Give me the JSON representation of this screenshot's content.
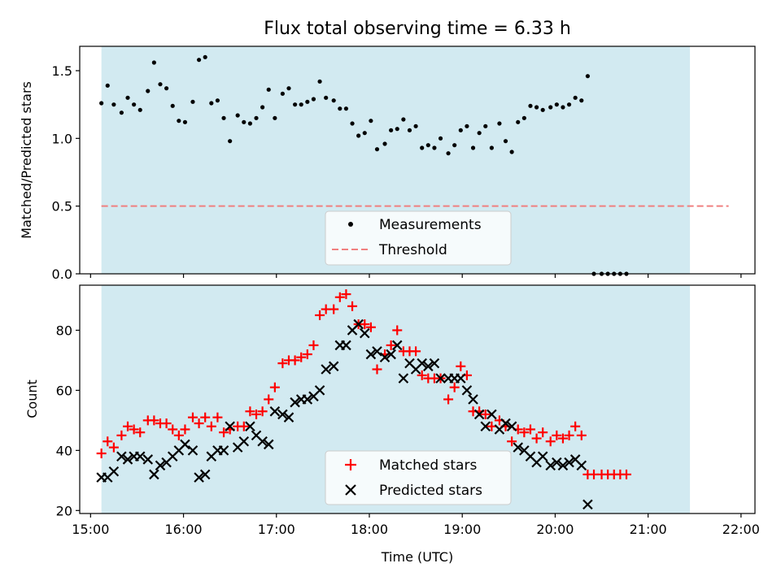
{
  "chart_data": [
    {
      "panel": "top",
      "type": "scatter",
      "title": "Flux total observing time = 6.33 h",
      "ylabel": "Matched/Predicted stars",
      "xlabel": "",
      "ylim": [
        0,
        1.68
      ],
      "yticks": [
        "0.0",
        "0.5",
        "1.0",
        "1.5"
      ],
      "shaded_span_utc": [
        "15:07",
        "21:27"
      ],
      "shade_color": "#add8e6",
      "legend": {
        "placement": "lower center",
        "entries": [
          "Measurements",
          "Threshold"
        ]
      },
      "threshold": {
        "name": "Threshold",
        "y": 0.5,
        "x_range": [
          "15:07",
          "21:52"
        ],
        "color": "#f08080"
      },
      "series": [
        {
          "name": "Measurements",
          "marker": "dot",
          "color": "#000000",
          "points": [
            [
              "15:07",
              1.26
            ],
            [
              "15:11",
              1.39
            ],
            [
              "15:15",
              1.25
            ],
            [
              "15:20",
              1.19
            ],
            [
              "15:24",
              1.3
            ],
            [
              "15:28",
              1.25
            ],
            [
              "15:32",
              1.21
            ],
            [
              "15:37",
              1.35
            ],
            [
              "15:41",
              1.56
            ],
            [
              "15:45",
              1.4
            ],
            [
              "15:49",
              1.37
            ],
            [
              "15:53",
              1.24
            ],
            [
              "15:57",
              1.13
            ],
            [
              "16:01",
              1.12
            ],
            [
              "16:06",
              1.27
            ],
            [
              "16:10",
              1.58
            ],
            [
              "16:14",
              1.6
            ],
            [
              "16:18",
              1.26
            ],
            [
              "16:22",
              1.28
            ],
            [
              "16:26",
              1.15
            ],
            [
              "16:30",
              0.98
            ],
            [
              "16:35",
              1.17
            ],
            [
              "16:39",
              1.12
            ],
            [
              "16:43",
              1.11
            ],
            [
              "16:47",
              1.15
            ],
            [
              "16:51",
              1.23
            ],
            [
              "16:55",
              1.36
            ],
            [
              "16:59",
              1.15
            ],
            [
              "17:04",
              1.33
            ],
            [
              "17:08",
              1.37
            ],
            [
              "17:12",
              1.25
            ],
            [
              "17:16",
              1.25
            ],
            [
              "17:20",
              1.27
            ],
            [
              "17:24",
              1.29
            ],
            [
              "17:28",
              1.42
            ],
            [
              "17:32",
              1.3
            ],
            [
              "17:37",
              1.28
            ],
            [
              "17:41",
              1.22
            ],
            [
              "17:45",
              1.22
            ],
            [
              "17:49",
              1.11
            ],
            [
              "17:53",
              1.02
            ],
            [
              "17:57",
              1.04
            ],
            [
              "18:01",
              1.13
            ],
            [
              "18:05",
              0.92
            ],
            [
              "18:10",
              0.96
            ],
            [
              "18:14",
              1.06
            ],
            [
              "18:18",
              1.07
            ],
            [
              "18:22",
              1.14
            ],
            [
              "18:26",
              1.06
            ],
            [
              "18:30",
              1.09
            ],
            [
              "18:34",
              0.93
            ],
            [
              "18:38",
              0.95
            ],
            [
              "18:42",
              0.93
            ],
            [
              "18:46",
              1.0
            ],
            [
              "18:51",
              0.89
            ],
            [
              "18:55",
              0.95
            ],
            [
              "18:59",
              1.06
            ],
            [
              "19:03",
              1.09
            ],
            [
              "19:07",
              0.93
            ],
            [
              "19:11",
              1.04
            ],
            [
              "19:15",
              1.09
            ],
            [
              "19:19",
              0.93
            ],
            [
              "19:24",
              1.11
            ],
            [
              "19:28",
              0.98
            ],
            [
              "19:32",
              0.9
            ],
            [
              "19:36",
              1.12
            ],
            [
              "19:40",
              1.15
            ],
            [
              "19:44",
              1.24
            ],
            [
              "19:48",
              1.23
            ],
            [
              "19:52",
              1.21
            ],
            [
              "19:57",
              1.23
            ],
            [
              "20:01",
              1.25
            ],
            [
              "20:05",
              1.23
            ],
            [
              "20:09",
              1.25
            ],
            [
              "20:13",
              1.3
            ],
            [
              "20:17",
              1.28
            ],
            [
              "20:21",
              1.46
            ],
            [
              "20:25",
              0.0
            ],
            [
              "20:30",
              0.0
            ],
            [
              "20:34",
              0.0
            ],
            [
              "20:38",
              0.0
            ],
            [
              "20:42",
              0.0
            ],
            [
              "20:46",
              0.0
            ]
          ]
        }
      ]
    },
    {
      "panel": "bottom",
      "type": "scatter",
      "title": "",
      "ylabel": "Count",
      "xlabel": "Time (UTC)",
      "ylim": [
        19,
        95
      ],
      "yticks": [
        "20",
        "40",
        "60",
        "80"
      ],
      "xlim": [
        "14:53",
        "22:09"
      ],
      "xticks": [
        "15:00",
        "16:00",
        "17:00",
        "18:00",
        "19:00",
        "20:00",
        "21:00",
        "22:00"
      ],
      "shaded_span_utc": [
        "15:07",
        "21:27"
      ],
      "shade_color": "#add8e6",
      "legend": {
        "placement": "lower center",
        "entries": [
          "Matched stars",
          "Predicted stars"
        ]
      },
      "series": [
        {
          "name": "Matched stars",
          "marker": "plus",
          "color": "#ff0000",
          "points": [
            [
              "15:07",
              39
            ],
            [
              "15:11",
              43
            ],
            [
              "15:15",
              41
            ],
            [
              "15:20",
              45
            ],
            [
              "15:24",
              48
            ],
            [
              "15:28",
              47
            ],
            [
              "15:32",
              46
            ],
            [
              "15:37",
              50
            ],
            [
              "15:41",
              50
            ],
            [
              "15:45",
              49
            ],
            [
              "15:49",
              49
            ],
            [
              "15:53",
              47
            ],
            [
              "15:57",
              45
            ],
            [
              "16:01",
              47
            ],
            [
              "16:06",
              51
            ],
            [
              "16:10",
              49
            ],
            [
              "16:14",
              51
            ],
            [
              "16:18",
              48
            ],
            [
              "16:22",
              51
            ],
            [
              "16:26",
              46
            ],
            [
              "16:30",
              47
            ],
            [
              "16:35",
              48
            ],
            [
              "16:39",
              48
            ],
            [
              "16:43",
              53
            ],
            [
              "16:47",
              52
            ],
            [
              "16:51",
              53
            ],
            [
              "16:55",
              57
            ],
            [
              "16:59",
              61
            ],
            [
              "17:04",
              69
            ],
            [
              "17:08",
              70
            ],
            [
              "17:12",
              70
            ],
            [
              "17:16",
              71
            ],
            [
              "17:20",
              72
            ],
            [
              "17:24",
              75
            ],
            [
              "17:28",
              85
            ],
            [
              "17:32",
              87
            ],
            [
              "17:37",
              87
            ],
            [
              "17:41",
              91
            ],
            [
              "17:45",
              92
            ],
            [
              "17:49",
              88
            ],
            [
              "17:53",
              82
            ],
            [
              "17:57",
              82
            ],
            [
              "18:01",
              81
            ],
            [
              "18:05",
              67
            ],
            [
              "18:10",
              72
            ],
            [
              "18:14",
              75
            ],
            [
              "18:18",
              80
            ],
            [
              "18:22",
              73
            ],
            [
              "18:26",
              73
            ],
            [
              "18:30",
              73
            ],
            [
              "18:34",
              65
            ],
            [
              "18:38",
              64
            ],
            [
              "18:42",
              64
            ],
            [
              "18:46",
              64
            ],
            [
              "18:51",
              57
            ],
            [
              "18:55",
              61
            ],
            [
              "18:59",
              68
            ],
            [
              "19:03",
              65
            ],
            [
              "19:07",
              53
            ],
            [
              "19:11",
              53
            ],
            [
              "19:15",
              52
            ],
            [
              "19:19",
              48
            ],
            [
              "19:24",
              50
            ],
            [
              "19:28",
              48
            ],
            [
              "19:32",
              43
            ],
            [
              "19:36",
              47
            ],
            [
              "19:40",
              46
            ],
            [
              "19:44",
              47
            ],
            [
              "19:48",
              44
            ],
            [
              "19:52",
              46
            ],
            [
              "19:57",
              43
            ],
            [
              "20:01",
              45
            ],
            [
              "20:05",
              44
            ],
            [
              "20:09",
              45
            ],
            [
              "20:13",
              48
            ],
            [
              "20:17",
              45
            ],
            [
              "20:21",
              32
            ],
            [
              "20:25",
              32
            ],
            [
              "20:30",
              32
            ],
            [
              "20:34",
              32
            ],
            [
              "20:38",
              32
            ],
            [
              "20:42",
              32
            ],
            [
              "20:46",
              32
            ]
          ]
        },
        {
          "name": "Predicted stars",
          "marker": "x",
          "color": "#000000",
          "points": [
            [
              "15:07",
              31
            ],
            [
              "15:11",
              31
            ],
            [
              "15:15",
              33
            ],
            [
              "15:20",
              38
            ],
            [
              "15:24",
              37
            ],
            [
              "15:28",
              38
            ],
            [
              "15:32",
              38
            ],
            [
              "15:37",
              37
            ],
            [
              "15:41",
              32
            ],
            [
              "15:45",
              35
            ],
            [
              "15:49",
              36
            ],
            [
              "15:53",
              38
            ],
            [
              "15:57",
              40
            ],
            [
              "16:01",
              42
            ],
            [
              "16:06",
              40
            ],
            [
              "16:10",
              31
            ],
            [
              "16:14",
              32
            ],
            [
              "16:18",
              38
            ],
            [
              "16:22",
              40
            ],
            [
              "16:26",
              40
            ],
            [
              "16:30",
              48
            ],
            [
              "16:35",
              41
            ],
            [
              "16:39",
              43
            ],
            [
              "16:43",
              48
            ],
            [
              "16:47",
              45
            ],
            [
              "16:51",
              43
            ],
            [
              "16:55",
              42
            ],
            [
              "16:59",
              53
            ],
            [
              "17:04",
              52
            ],
            [
              "17:08",
              51
            ],
            [
              "17:12",
              56
            ],
            [
              "17:16",
              57
            ],
            [
              "17:20",
              57
            ],
            [
              "17:24",
              58
            ],
            [
              "17:28",
              60
            ],
            [
              "17:32",
              67
            ],
            [
              "17:37",
              68
            ],
            [
              "17:41",
              75
            ],
            [
              "17:45",
              75
            ],
            [
              "17:49",
              80
            ],
            [
              "17:53",
              82
            ],
            [
              "17:57",
              79
            ],
            [
              "18:01",
              72
            ],
            [
              "18:05",
              73
            ],
            [
              "18:10",
              71
            ],
            [
              "18:14",
              72
            ],
            [
              "18:18",
              75
            ],
            [
              "18:22",
              64
            ],
            [
              "18:26",
              69
            ],
            [
              "18:30",
              67
            ],
            [
              "18:34",
              69
            ],
            [
              "18:38",
              68
            ],
            [
              "18:42",
              69
            ],
            [
              "18:46",
              64
            ],
            [
              "18:51",
              64
            ],
            [
              "18:55",
              64
            ],
            [
              "18:59",
              64
            ],
            [
              "19:03",
              60
            ],
            [
              "19:07",
              57
            ],
            [
              "19:11",
              52
            ],
            [
              "19:15",
              48
            ],
            [
              "19:19",
              52
            ],
            [
              "19:24",
              47
            ],
            [
              "19:28",
              49
            ],
            [
              "19:32",
              48
            ],
            [
              "19:36",
              41
            ],
            [
              "19:40",
              40
            ],
            [
              "19:44",
              38
            ],
            [
              "19:48",
              36
            ],
            [
              "19:52",
              38
            ],
            [
              "19:57",
              35
            ],
            [
              "20:01",
              36
            ],
            [
              "20:05",
              35
            ],
            [
              "20:09",
              36
            ],
            [
              "20:13",
              37
            ],
            [
              "20:17",
              35
            ],
            [
              "20:21",
              22
            ]
          ]
        }
      ]
    }
  ]
}
